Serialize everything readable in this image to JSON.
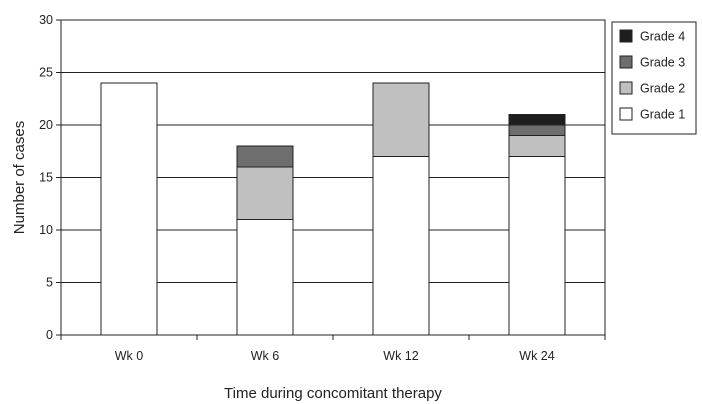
{
  "chart_data": {
    "type": "bar",
    "stacked": true,
    "title": "",
    "xlabel": "Time during concomitant therapy",
    "ylabel": "Number of cases",
    "ylim": [
      0,
      30
    ],
    "yticks": [
      0,
      5,
      10,
      15,
      20,
      25,
      30
    ],
    "grid": true,
    "legend_position": "right",
    "categories": [
      "Wk 0",
      "Wk 6",
      "Wk 12",
      "Wk 24"
    ],
    "series": [
      {
        "name": "Grade 1",
        "color": "#ffffff",
        "values": [
          24,
          11,
          17,
          17
        ]
      },
      {
        "name": "Grade 2",
        "color": "#c0c0c0",
        "values": [
          0,
          5,
          7,
          2
        ]
      },
      {
        "name": "Grade 3",
        "color": "#6e6e6e",
        "values": [
          0,
          2,
          0,
          1
        ]
      },
      {
        "name": "Grade 4",
        "color": "#1e1e1e",
        "values": [
          0,
          0,
          0,
          1
        ]
      }
    ]
  }
}
